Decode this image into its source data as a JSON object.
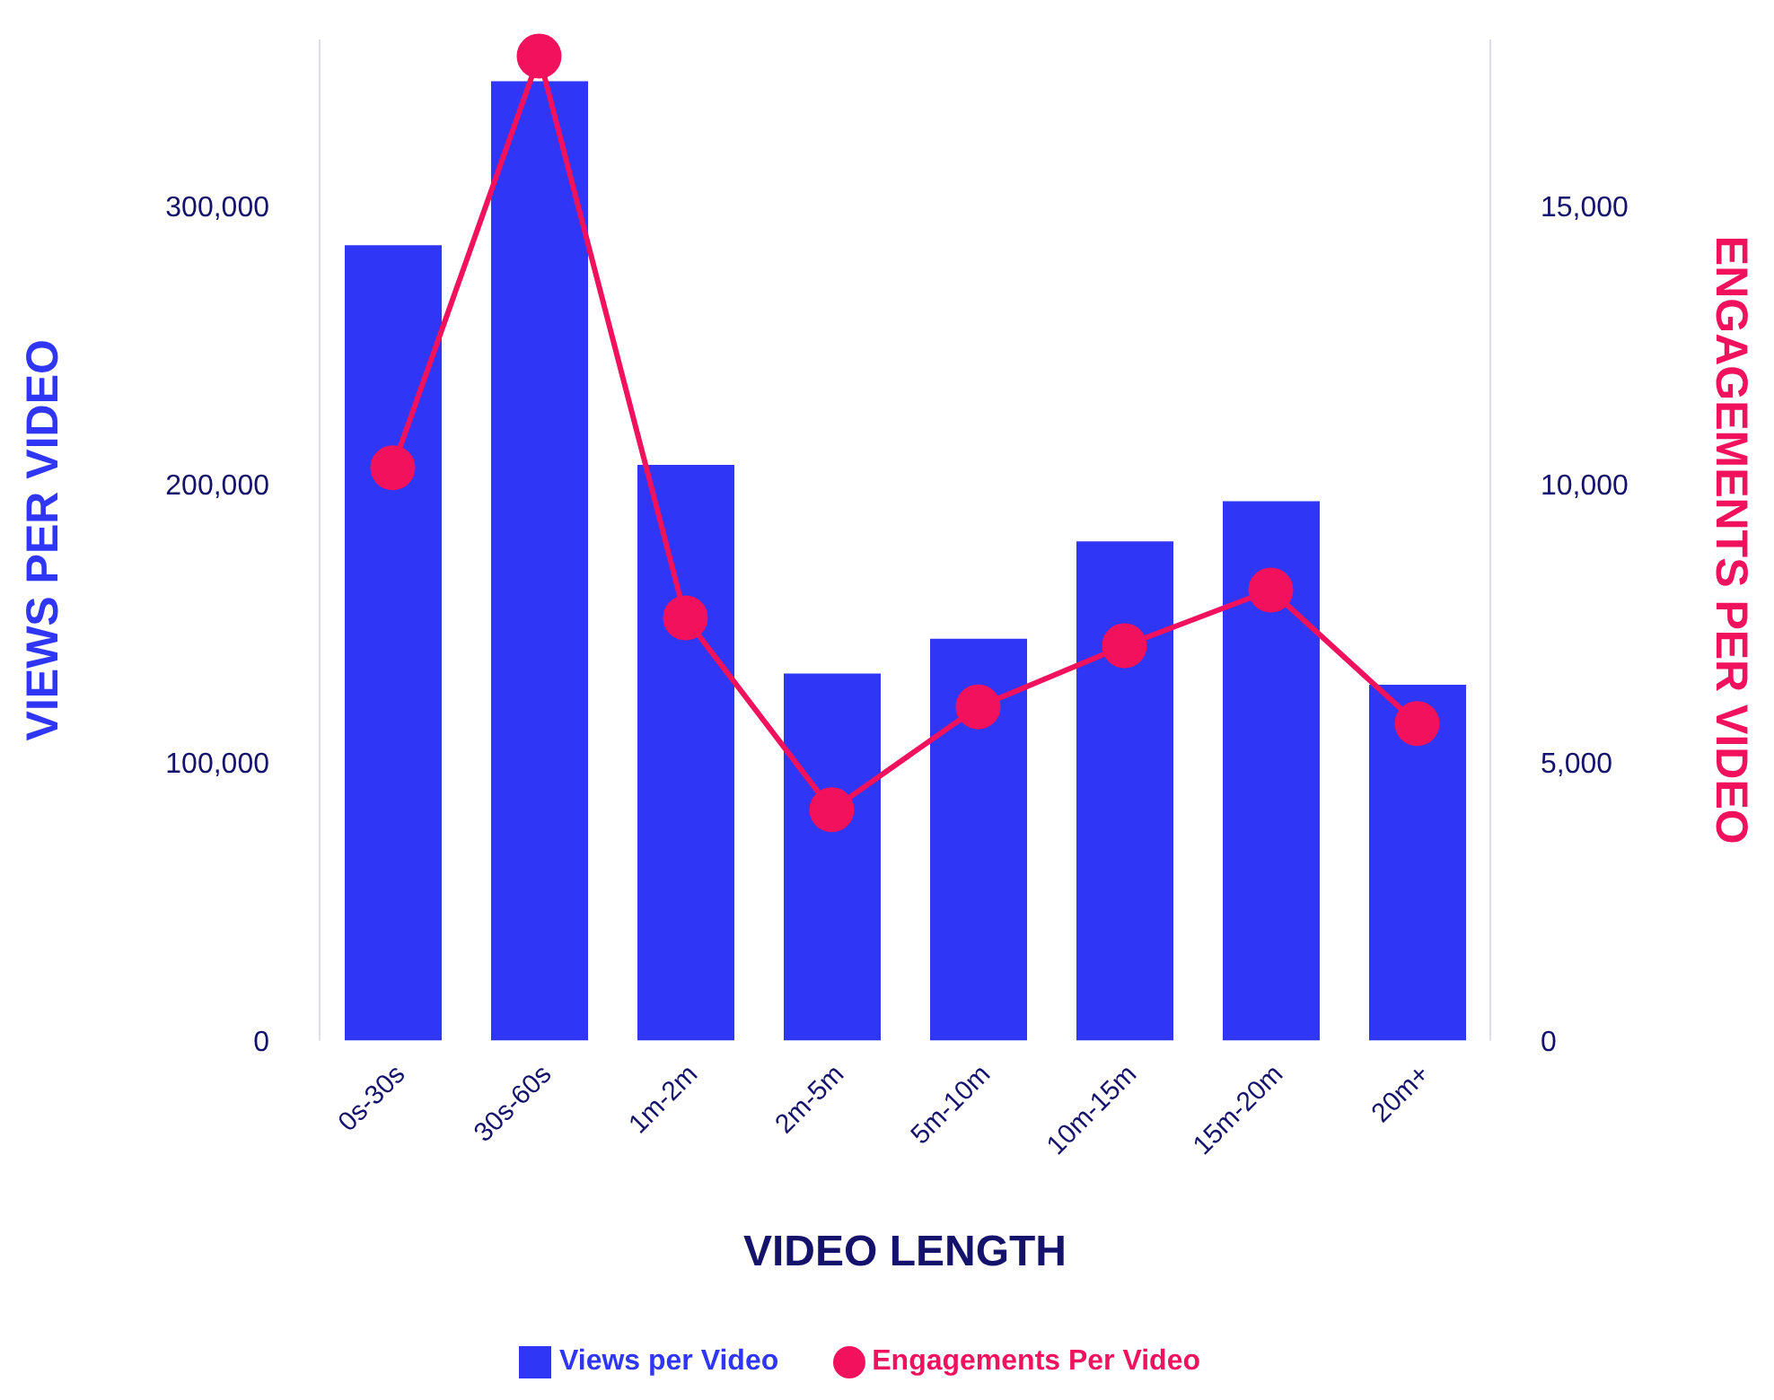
{
  "chart_data": {
    "type": "bar",
    "xlabel": "VIDEO LENGTH",
    "ylabel": "VIEWS PER VIDEO",
    "y2label": "ENGAGEMENTS PER VIDEO",
    "categories": [
      "0s-30s",
      "30s-60s",
      "1m-2m",
      "2m-5m",
      "5m-10m",
      "10m-15m",
      "15m-20m",
      "20m+"
    ],
    "series": [
      {
        "name": "Views per Video",
        "color": "#2f36f5",
        "values": [
          286000,
          345000,
          207000,
          132000,
          144500,
          179500,
          194000,
          128000
        ]
      },
      {
        "name": "Engagements Per Video",
        "type": "line",
        "axis": "y2",
        "color": "#f2115c",
        "marker": "circle",
        "values": [
          10300,
          17700,
          7600,
          4150,
          6000,
          7100,
          8100,
          5700
        ]
      }
    ],
    "ylim": [
      0,
      360000
    ],
    "yticks": [
      {
        "value": 0,
        "label": "0"
      },
      {
        "value": 100000,
        "label": "100,000"
      },
      {
        "value": 200000,
        "label": "200,000"
      },
      {
        "value": 300000,
        "label": "300,000"
      }
    ],
    "y2lim": [
      0,
      18000
    ],
    "y2ticks": [
      {
        "value": 0,
        "label": "0"
      },
      {
        "value": 5000,
        "label": "5,000"
      },
      {
        "value": 10000,
        "label": "10,000"
      },
      {
        "value": 15000,
        "label": "15,000"
      }
    ],
    "grid": false,
    "legend": "bottom"
  }
}
